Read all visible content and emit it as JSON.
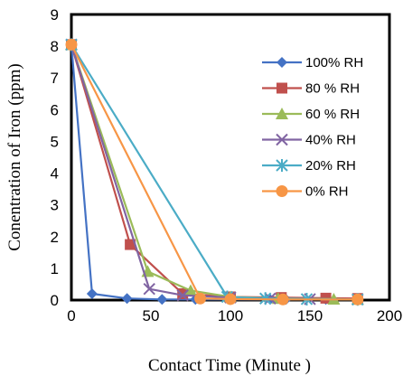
{
  "chart_data": {
    "type": "line",
    "xlabel": "Contact Time (Minute )",
    "ylabel": "Conentration of Iron  (ppm)",
    "xlim": [
      0,
      200
    ],
    "ylim": [
      0,
      9
    ],
    "xticks": [
      0,
      50,
      100,
      150,
      200
    ],
    "yticks": [
      0,
      1,
      2,
      3,
      4,
      5,
      6,
      7,
      8,
      9
    ],
    "grid": false,
    "legend": "right",
    "series": [
      {
        "name": "100% RH",
        "color": "#4472C4",
        "marker": "diamond",
        "x": [
          0,
          13,
          35,
          57,
          78,
          100,
          125,
          135,
          160,
          180
        ],
        "y": [
          8.05,
          0.2,
          0.05,
          0.02,
          0.02,
          0.02,
          0.02,
          0.02,
          0.02,
          0.02
        ]
      },
      {
        "name": "80 % RH",
        "color": "#C0504D",
        "marker": "square",
        "x": [
          0,
          37,
          70,
          100,
          132,
          160,
          180
        ],
        "y": [
          8.05,
          1.75,
          0.2,
          0.1,
          0.08,
          0.06,
          0.05
        ]
      },
      {
        "name": "60 % RH",
        "color": "#9BBB59",
        "marker": "triangle",
        "x": [
          0,
          48,
          75,
          100,
          130,
          165,
          180
        ],
        "y": [
          8.05,
          0.9,
          0.3,
          0.1,
          0.05,
          0.03,
          0.02
        ]
      },
      {
        "name": "40% RH",
        "color": "#8064A2",
        "marker": "x",
        "x": [
          0,
          49,
          70,
          100,
          125,
          150,
          180
        ],
        "y": [
          8.05,
          0.35,
          0.15,
          0.08,
          0.05,
          0.03,
          0.02
        ]
      },
      {
        "name": "20% RH",
        "color": "#4BACC6",
        "marker": "star",
        "x": [
          0,
          98,
          122,
          148,
          180
        ],
        "y": [
          8.05,
          0.1,
          0.05,
          0.03,
          0.02
        ]
      },
      {
        "name": "0% RH",
        "color": "#F79646",
        "marker": "circle",
        "x": [
          0,
          81,
          100,
          133,
          180
        ],
        "y": [
          8.05,
          0.05,
          0.03,
          0.02,
          0.02
        ]
      }
    ]
  }
}
